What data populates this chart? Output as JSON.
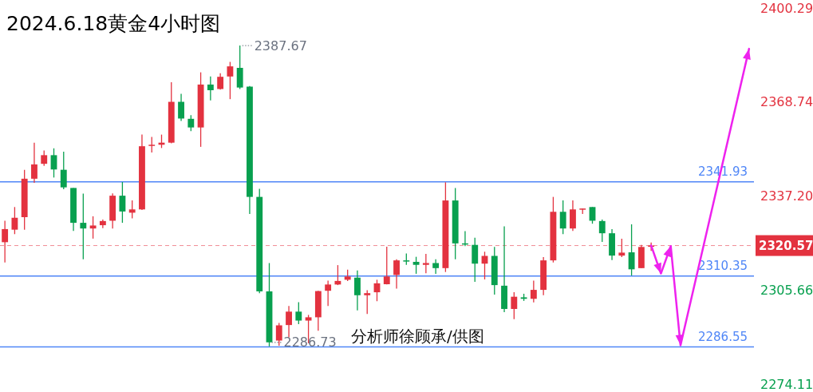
{
  "chart_data": {
    "type": "candlestick",
    "title": "2024.6.18黄金4小时图",
    "categories": [
      null,
      null,
      null,
      null,
      null,
      null,
      null,
      null,
      null,
      null,
      null,
      null,
      null,
      null,
      null,
      null,
      null,
      null,
      null,
      null,
      null,
      null,
      null,
      null,
      null,
      null,
      null,
      null,
      null,
      null,
      null,
      null,
      null,
      null,
      null,
      null,
      null,
      null,
      null,
      null,
      null,
      null,
      null,
      null,
      null,
      null,
      null,
      null,
      null,
      null,
      null,
      null,
      null,
      null,
      null,
      null,
      null,
      null,
      null,
      null,
      null,
      null,
      null,
      null,
      null,
      null,
      null,
      null,
      null,
      null,
      null,
      null,
      null,
      null,
      null,
      null,
      null
    ],
    "ylim": [
      2274.11,
      2400.29
    ],
    "yticks": [
      2274.11,
      2305.66,
      {
        "value": 2337.2,
        "label": "2337.20"
      },
      2368.74,
      2400.29
    ],
    "tick_labels": "y",
    "ohlc": [
      [
        2321.7,
        2328.9,
        2314.9,
        2326.1
      ],
      [
        2325.9,
        2333.5,
        2324.4,
        2329.9
      ],
      [
        2330.1,
        2346.0,
        2325.9,
        2343.0
      ],
      [
        2343.0,
        2355.1,
        2341.6,
        2347.8
      ],
      [
        2348.0,
        2352.5,
        2347.3,
        2350.9
      ],
      [
        2350.9,
        2353.2,
        2343.4,
        2346.1
      ],
      [
        2346.0,
        2352.1,
        2339.5,
        2340.1
      ],
      [
        2339.9,
        2339.9,
        2325.5,
        2328.2
      ],
      [
        2328.2,
        2338.0,
        2316.0,
        2326.3
      ],
      [
        2326.3,
        2330.4,
        2322.9,
        2327.3
      ],
      [
        2327.4,
        2329.3,
        2326.4,
        2328.8
      ],
      [
        2328.9,
        2338.1,
        2326.3,
        2337.3
      ],
      [
        2337.3,
        2341.9,
        2328.2,
        2332.0
      ],
      [
        2331.6,
        2335.7,
        2329.7,
        2332.7
      ],
      [
        2332.7,
        2357.8,
        2332.5,
        2353.9
      ],
      [
        2354.1,
        2357.0,
        2351.8,
        2354.4
      ],
      [
        2354.4,
        2357.8,
        2353.3,
        2355.1
      ],
      [
        2355.1,
        2375.4,
        2354.9,
        2368.8
      ],
      [
        2368.8,
        2371.5,
        2362.4,
        2363.2
      ],
      [
        2363.1,
        2364.3,
        2359.0,
        2360.2
      ],
      [
        2360.2,
        2378.7,
        2353.7,
        2374.6
      ],
      [
        2374.6,
        2377.3,
        2369.3,
        2372.7
      ],
      [
        2373.1,
        2378.4,
        2372.9,
        2377.2
      ],
      [
        2377.3,
        2382.2,
        2369.7,
        2380.7
      ],
      [
        2380.2,
        2387.67,
        2373.1,
        2373.6
      ],
      [
        2373.9,
        2374.1,
        2331.2,
        2336.9
      ],
      [
        2336.9,
        2339.6,
        2304.6,
        2305.2
      ],
      [
        2305.2,
        2314.7,
        2286.73,
        2288.1
      ],
      [
        2288.7,
        2294.6,
        2287.0,
        2293.8
      ],
      [
        2293.9,
        2300.3,
        2289.8,
        2298.4
      ],
      [
        2298.4,
        2301.6,
        2294.2,
        2295.4
      ],
      [
        2295.4,
        2297.3,
        2287.8,
        2296.5
      ],
      [
        2296.5,
        2305.4,
        2292.0,
        2305.3
      ],
      [
        2305.4,
        2308.8,
        2300.3,
        2307.5
      ],
      [
        2307.5,
        2314.0,
        2307.3,
        2308.7
      ],
      [
        2309.1,
        2312.5,
        2308.7,
        2310.2
      ],
      [
        2309.8,
        2312.2,
        2298.8,
        2303.9
      ],
      [
        2303.9,
        2305.6,
        2297.6,
        2304.6
      ],
      [
        2304.9,
        2309.1,
        2301.9,
        2307.9
      ],
      [
        2307.6,
        2320.2,
        2307.5,
        2310.2
      ],
      [
        2310.7,
        2316.0,
        2306.1,
        2315.6
      ],
      [
        2315.6,
        2317.9,
        2314.1,
        2315.2
      ],
      [
        2315.1,
        2316.8,
        2311.1,
        2314.1
      ],
      [
        2314.1,
        2317.8,
        2311.3,
        2314.7
      ],
      [
        2314.7,
        2316.0,
        2311.1,
        2313.0
      ],
      [
        2313.0,
        2341.8,
        2311.7,
        2335.7
      ],
      [
        2335.7,
        2339.9,
        2316.0,
        2321.3
      ],
      [
        2321.3,
        2325.4,
        2320.4,
        2321.0
      ],
      [
        2320.8,
        2323.2,
        2308.4,
        2314.5
      ],
      [
        2314.5,
        2318.5,
        2309.2,
        2317.1
      ],
      [
        2317.1,
        2320.1,
        2304.1,
        2307.3
      ],
      [
        2307.1,
        2327.0,
        2298.2,
        2299.3
      ],
      [
        2299.3,
        2304.9,
        2295.9,
        2303.4
      ],
      [
        2303.2,
        2304.4,
        2302.0,
        2302.7
      ],
      [
        2302.7,
        2308.8,
        2301.5,
        2305.7
      ],
      [
        2305.7,
        2316.7,
        2303.9,
        2315.6
      ],
      [
        2315.6,
        2336.9,
        2314.9,
        2331.9
      ],
      [
        2331.9,
        2335.7,
        2324.4,
        2326.3
      ],
      [
        2326.3,
        2335.7,
        2325.5,
        2332.7
      ],
      [
        2332.6,
        2333.0,
        2331.2,
        2333.0
      ],
      [
        2333.5,
        2333.5,
        2327.9,
        2328.9
      ],
      [
        2328.8,
        2329.3,
        2321.8,
        2324.7
      ],
      [
        2324.7,
        2326.1,
        2315.7,
        2317.2
      ],
      [
        2317.2,
        2322.9,
        2316.7,
        2318.2
      ],
      [
        2318.3,
        2327.7,
        2310.5,
        2312.6
      ],
      [
        2313.0,
        2320.8,
        2313.0,
        2320.1
      ],
      [
        2320.3,
        2321.6,
        2318.8,
        2320.57
      ],
      null,
      null,
      null,
      null,
      null,
      null,
      null,
      null,
      null,
      null
    ],
    "series": [
      {
        "type": "line",
        "color": "#ee22ee",
        "values": [
          null,
          null,
          null,
          null,
          null,
          null,
          null,
          null,
          null,
          null,
          null,
          null,
          null,
          null,
          null,
          null,
          null,
          null,
          null,
          null,
          null,
          null,
          null,
          null,
          null,
          null,
          null,
          null,
          null,
          null,
          null,
          null,
          null,
          null,
          null,
          null,
          null,
          null,
          null,
          null,
          null,
          null,
          null,
          null,
          null,
          null,
          null,
          null,
          null,
          null,
          null,
          null,
          null,
          null,
          null,
          null,
          null,
          null,
          null,
          null,
          null,
          null,
          null,
          null,
          null,
          null,
          2320.6,
          2311.2,
          2320.4,
          2287.1,
          null,
          null,
          null,
          null,
          null,
          null,
          2386.6
        ]
      }
    ],
    "ref_lines": [
      {
        "axis": "y",
        "value": 2341.93,
        "label": "2341.93",
        "color": "#4f86f7"
      },
      {
        "axis": "y",
        "value": 2310.35,
        "label": "2310.35",
        "color": "#4f86f7"
      },
      {
        "axis": "y",
        "value": 2286.55,
        "label": "2286.55",
        "color": "#4f86f7"
      },
      {
        "axis": "y",
        "value": 2320.57,
        "label": "2320.57",
        "color": "#f08a94",
        "line_style": "dashed"
      }
    ],
    "annotations": [
      "2387.67",
      "2286.73",
      "分析师徐顾承/供图"
    ]
  }
}
